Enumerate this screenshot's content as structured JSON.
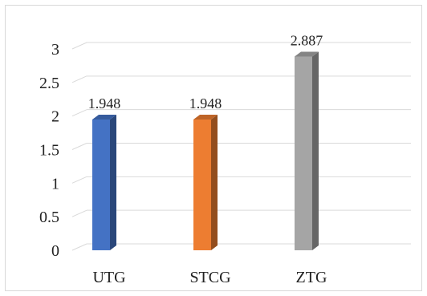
{
  "chart_data": {
    "type": "bar",
    "style": "3d-column",
    "categories": [
      "UTG",
      "STCG",
      "ZTG"
    ],
    "values": [
      1.948,
      1.948,
      2.887
    ],
    "data_labels": [
      "1.948",
      "1.948",
      "2.887"
    ],
    "colors": [
      "#4472c4",
      "#ed7d31",
      "#a5a5a5"
    ],
    "ylim": [
      0,
      3
    ],
    "yticks": [
      "0",
      "0.5",
      "1",
      "1.5",
      "2",
      "2.5",
      "3"
    ],
    "grid": true,
    "legend": "none"
  }
}
